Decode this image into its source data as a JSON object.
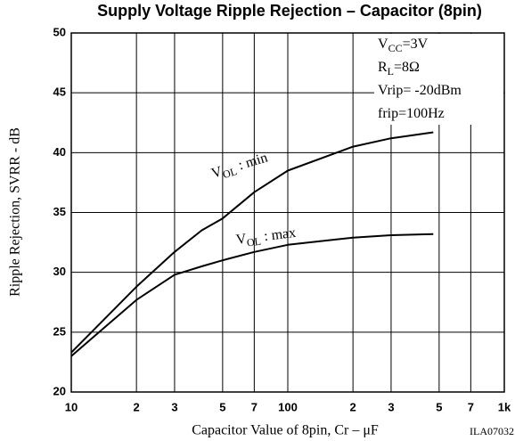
{
  "chart_data": {
    "type": "line",
    "title": "Supply Voltage Ripple Rejection  –  Capacitor (8pin)",
    "x_label": "Capacitor Value of 8pin,  Cr  –  μF",
    "y_label": "Ripple Rejection,  SVRR  -  dB",
    "figure_id": "ILA07032",
    "x_log": true,
    "grid": true,
    "x": [
      10,
      20,
      30,
      40,
      50,
      70,
      100,
      200,
      300,
      470
    ],
    "series": [
      {
        "name_parts": [
          "V",
          "OL",
          " : min"
        ],
        "color": "#000000",
        "values": [
          23.3,
          28.8,
          31.7,
          33.5,
          34.5,
          36.7,
          38.5,
          40.5,
          41.2,
          41.7
        ]
      },
      {
        "name_parts": [
          "V",
          "OL",
          " : max"
        ],
        "color": "#000000",
        "values": [
          23.0,
          27.7,
          29.8,
          30.5,
          31.0,
          31.7,
          32.3,
          32.9,
          33.1,
          33.2
        ]
      }
    ],
    "annotations": [
      {
        "parts": [
          "V",
          "CC",
          "=3V"
        ]
      },
      {
        "parts": [
          "R",
          "L",
          "=8Ω"
        ]
      },
      {
        "parts": [
          "Vrip= -20dBm"
        ]
      },
      {
        "parts": [
          "frip=100Hz"
        ]
      }
    ],
    "xlim": [
      10,
      1000
    ],
    "ylim": [
      20,
      50
    ],
    "xticks": [
      10,
      {
        "value": 20,
        "label": "2"
      },
      {
        "value": 30,
        "label": "3"
      },
      {
        "value": 50,
        "label": "5"
      },
      {
        "value": 70,
        "label": "7"
      },
      100,
      {
        "value": 200,
        "label": "2"
      },
      {
        "value": 300,
        "label": "3"
      },
      {
        "value": 500,
        "label": "5"
      },
      {
        "value": 700,
        "label": "7"
      },
      {
        "value": 1000,
        "label": "1k"
      }
    ],
    "yticks": [
      20,
      25,
      30,
      35,
      40,
      45,
      50
    ]
  }
}
